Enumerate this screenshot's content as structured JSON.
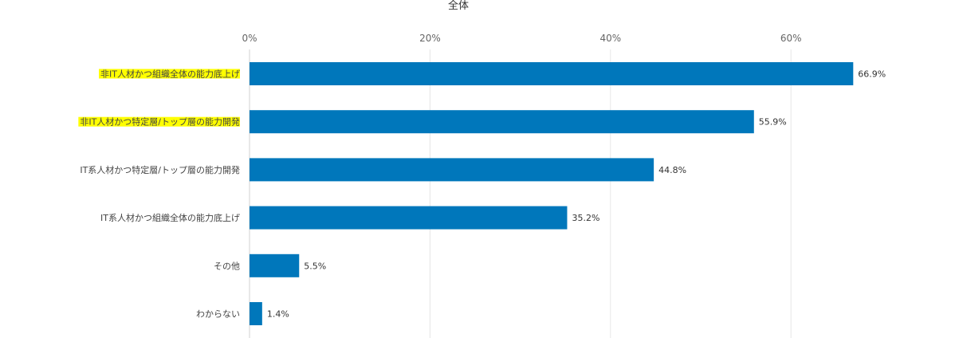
{
  "chart_data": {
    "type": "bar",
    "orientation": "horizontal",
    "title": "全体",
    "xlabel": "",
    "ylabel": "",
    "xlim": [
      0,
      70
    ],
    "ticks": [
      0,
      20,
      40,
      60
    ],
    "tick_labels": [
      "0%",
      "20%",
      "40%",
      "60%"
    ],
    "grid": true,
    "categories": [
      "非IT人材かつ組織全体の能力底上げ",
      "非IT人材かつ特定層/トップ層の能力開発",
      "IT系人材かつ特定層/トップ層の能力開発",
      "IT系人材かつ組織全体の能力底上げ",
      "その他",
      "わからない"
    ],
    "values": [
      66.9,
      55.9,
      44.8,
      35.2,
      5.5,
      1.4
    ],
    "value_labels": [
      "66.9%",
      "55.9%",
      "44.8%",
      "35.2%",
      "5.5%",
      "1.4%"
    ],
    "highlighted": [
      true,
      true,
      false,
      false,
      false,
      false
    ],
    "bar_color": "#0077bb",
    "highlight_color": "#ffff00"
  }
}
